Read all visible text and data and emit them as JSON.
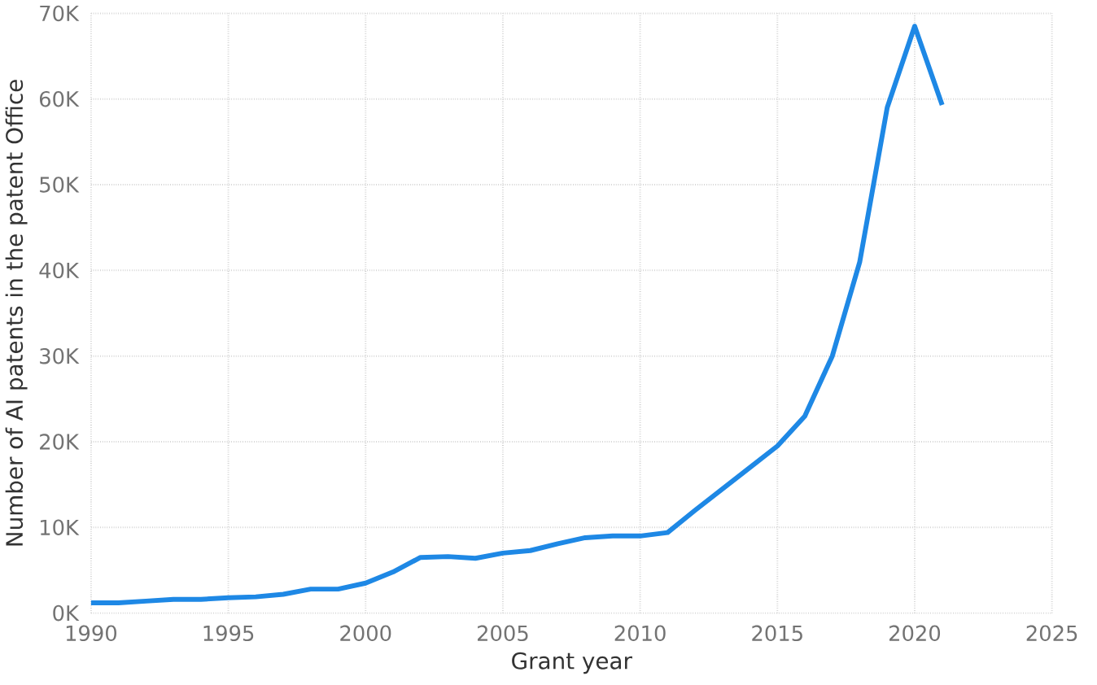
{
  "chart_data": {
    "type": "line",
    "xlabel": "Grant year",
    "ylabel": "Number of AI patents in the patent Office",
    "x": [
      1990,
      1991,
      1992,
      1993,
      1994,
      1995,
      1996,
      1997,
      1998,
      1999,
      2000,
      2001,
      2002,
      2003,
      2004,
      2005,
      2006,
      2007,
      2008,
      2009,
      2010,
      2011,
      2012,
      2013,
      2014,
      2015,
      2016,
      2017,
      2018,
      2019,
      2020,
      2021
    ],
    "series": [
      {
        "color": "#1e88e5",
        "values": [
          1200,
          1200,
          1400,
          1600,
          1600,
          1800,
          1900,
          2200,
          2800,
          2800,
          3500,
          4800,
          6500,
          6600,
          6400,
          7000,
          7300,
          8100,
          8800,
          9000,
          9000,
          9400,
          12000,
          14500,
          17000,
          19500,
          23000,
          30000,
          41000,
          59000,
          68500,
          59300
        ]
      }
    ],
    "xlim": [
      1990,
      2025
    ],
    "xticks": [
      1990,
      1995,
      2000,
      2005,
      2010,
      2015,
      2020,
      2025
    ],
    "ylim": [
      0,
      70000
    ],
    "yticks": [
      {
        "value": 0,
        "label": "0K"
      },
      {
        "value": 10000,
        "label": "10K"
      },
      {
        "value": 20000,
        "label": "20K"
      },
      {
        "value": 30000,
        "label": "30K"
      },
      {
        "value": 40000,
        "label": "40K"
      },
      {
        "value": 50000,
        "label": "50K"
      },
      {
        "value": 60000,
        "label": "60K"
      },
      {
        "value": 70000,
        "label": "70K"
      }
    ],
    "grid": true,
    "marker": "none",
    "line_style": "solid"
  }
}
